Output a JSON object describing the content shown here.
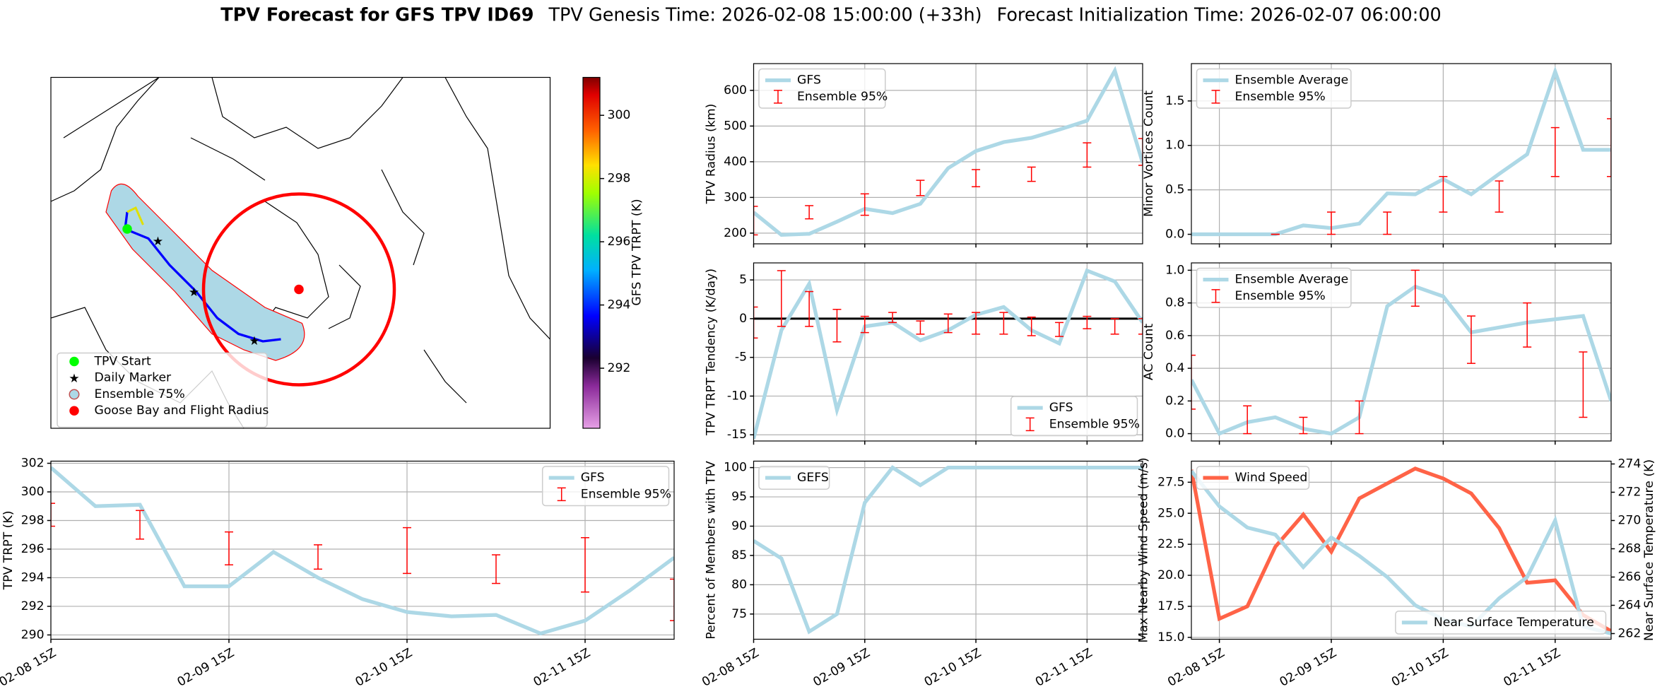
{
  "title": {
    "bold": "TPV Forecast for GFS TPV ID69",
    "genesis": "TPV Genesis Time: 2026-02-08 15:00:00 (+33h)",
    "init": "Forecast Initialization Time: 2026-02-07 06:00:00"
  },
  "chart_data": [
    {
      "type": "map",
      "legend": [
        "TPV Start",
        "Daily Marker",
        "Ensemble 75%",
        "Goose Bay and Flight Radius"
      ],
      "legend_colors": [
        "#00ff00",
        "#ff00ff",
        "#add8e6",
        "#ff0000"
      ],
      "colorbar": {
        "label": "GFS TPV TRPT (K)",
        "clim": [
          290.1,
          301.2
        ],
        "ticks": [
          292,
          294,
          296,
          298,
          300
        ]
      }
    },
    {
      "type": "line",
      "ylabel": "TPV TRPT (K)",
      "xlim": [
        0,
        84
      ],
      "xticks": [
        {
          "value": 0,
          "label": "02-08 15Z"
        },
        {
          "value": 24,
          "label": "02-09 15Z"
        },
        {
          "value": 48,
          "label": "02-10 15Z"
        },
        {
          "value": 72,
          "label": "02-11 15Z"
        }
      ],
      "xticklabels": true,
      "ylim": [
        289.7,
        302.15
      ],
      "yticks": [
        290,
        292,
        294,
        296,
        298,
        300,
        302
      ],
      "grid": true,
      "legend": "upper right",
      "x": [
        0,
        6,
        12,
        18,
        24,
        30,
        36,
        42,
        48,
        54,
        60,
        66,
        72,
        78,
        84
      ],
      "series": [
        {
          "name": "GFS",
          "color": "#add8e6",
          "values": [
            301.7,
            299.0,
            299.1,
            293.4,
            293.4,
            295.8,
            294.0,
            292.5,
            291.6,
            291.3,
            291.4,
            290.1,
            291.0,
            293.1,
            295.4
          ]
        }
      ],
      "errorbars": {
        "name": "Ensemble 95%",
        "color": "#ff0000",
        "x": [
          0,
          12,
          24,
          36,
          48,
          60,
          72,
          84
        ],
        "low": [
          297.6,
          296.7,
          294.9,
          294.6,
          294.3,
          293.6,
          293.0,
          291.0
        ],
        "high": [
          299.2,
          298.7,
          297.2,
          296.3,
          297.5,
          295.6,
          296.8,
          293.9
        ]
      }
    },
    {
      "type": "line",
      "ylabel": "TPV Radius (km)",
      "xlim": [
        0,
        84
      ],
      "xticks": [
        0,
        24,
        48,
        72
      ],
      "xticklabels": false,
      "ylim": [
        170,
        675
      ],
      "yticks": [
        200,
        300,
        400,
        500,
        600
      ],
      "grid": true,
      "legend": "upper left",
      "x": [
        0,
        6,
        12,
        18,
        24,
        30,
        36,
        42,
        48,
        54,
        60,
        66,
        72,
        78,
        84
      ],
      "series": [
        {
          "name": "GFS",
          "color": "#add8e6",
          "values": [
            258,
            195,
            198,
            232,
            268,
            256,
            282,
            382,
            430,
            455,
            467,
            490,
            515,
            655,
            397
          ]
        }
      ],
      "errorbars": {
        "name": "Ensemble 95%",
        "color": "#ff0000",
        "x": [
          0,
          12,
          24,
          36,
          48,
          60,
          72,
          84
        ],
        "low": [
          195,
          240,
          250,
          305,
          330,
          345,
          385,
          390
        ],
        "high": [
          275,
          277,
          310,
          348,
          378,
          385,
          453,
          465
        ]
      }
    },
    {
      "type": "line",
      "ylabel": "TPV TRPT Tendency (K/day)",
      "xlim": [
        0,
        84
      ],
      "xticks": [
        0,
        24,
        48,
        72
      ],
      "xticklabels": false,
      "ylim": [
        -15.8,
        7.2
      ],
      "yticks": [
        -15,
        -10,
        -5,
        0,
        5
      ],
      "grid": true,
      "legend": "lower right",
      "hline": 0,
      "x": [
        0,
        6,
        12,
        18,
        24,
        30,
        36,
        42,
        48,
        54,
        60,
        66,
        72,
        78,
        84
      ],
      "series": [
        {
          "name": "GFS",
          "color": "#add8e6",
          "values": [
            -15.5,
            -1.5,
            4.5,
            -11.8,
            -1.0,
            -0.5,
            -2.8,
            -1.5,
            0.5,
            1.5,
            -1.5,
            -3.2,
            6.2,
            4.8,
            -0.5
          ]
        }
      ],
      "errorbars": {
        "name": "Ensemble 95%",
        "color": "#ff0000",
        "x": [
          0,
          6,
          12,
          18,
          24,
          30,
          36,
          42,
          48,
          54,
          60,
          66,
          72,
          78,
          84
        ],
        "low": [
          -2.5,
          -1.0,
          -1.0,
          -3.0,
          -1.8,
          -0.5,
          -2.0,
          -1.8,
          -2.0,
          -2.0,
          -2.2,
          -2.3,
          -1.3,
          -2.0,
          -2.0
        ],
        "high": [
          1.5,
          6.2,
          3.5,
          1.2,
          0.3,
          0.8,
          -0.3,
          0.6,
          0.8,
          0.8,
          0.2,
          -0.5,
          0.3,
          0,
          0
        ]
      }
    },
    {
      "type": "line",
      "ylabel": "Percent of Members with TPV",
      "xlim": [
        0,
        84
      ],
      "xticks": [
        {
          "value": 0,
          "label": "02-08 15Z"
        },
        {
          "value": 24,
          "label": "02-09 15Z"
        },
        {
          "value": 48,
          "label": "02-10 15Z"
        },
        {
          "value": 72,
          "label": "02-11 15Z"
        }
      ],
      "xticklabels": true,
      "ylim": [
        70.7,
        101.1
      ],
      "yticks": [
        75,
        80,
        85,
        90,
        95,
        100
      ],
      "grid": true,
      "legend": "upper left",
      "x": [
        0,
        6,
        12,
        18,
        24,
        30,
        36,
        42,
        48,
        54,
        60,
        66,
        72,
        78,
        84
      ],
      "series": [
        {
          "name": "GEFS",
          "color": "#add8e6",
          "values": [
            87.5,
            84.5,
            72,
            75,
            94,
            100,
            97,
            100,
            100,
            100,
            100,
            100,
            100,
            100,
            100
          ]
        }
      ]
    },
    {
      "type": "line",
      "ylabel": "Minor Vortices Count",
      "xlim": [
        -6,
        84
      ],
      "xticks": [
        0,
        24,
        48,
        72
      ],
      "xticklabels": false,
      "ylim": [
        -0.107,
        1.92
      ],
      "yticks": [
        {
          "value": 0,
          "label": "0.0"
        },
        {
          "value": 0.5,
          "label": "0.5"
        },
        {
          "value": 1,
          "label": "1.0"
        },
        {
          "value": 1.5,
          "label": "1.5"
        }
      ],
      "grid": true,
      "legend": "upper left",
      "x": [
        -6,
        0,
        6,
        12,
        18,
        24,
        30,
        36,
        42,
        48,
        54,
        60,
        66,
        72,
        78,
        84
      ],
      "series": [
        {
          "name": "Ensemble Average",
          "color": "#add8e6",
          "values": [
            0,
            0,
            0,
            0,
            0.1,
            0.07,
            0.12,
            0.46,
            0.45,
            0.62,
            0.45,
            0.68,
            0.9,
            1.83,
            0.95,
            0.95
          ]
        }
      ],
      "errorbars": {
        "name": "Ensemble 95%",
        "color": "#ff0000",
        "x": [
          12,
          24,
          36,
          48,
          60,
          72,
          84
        ],
        "low": [
          0,
          0,
          0,
          0.25,
          0.25,
          0.65,
          0.65
        ],
        "high": [
          0,
          0.25,
          0.25,
          0.65,
          0.6,
          1.2,
          1.3
        ]
      }
    },
    {
      "type": "line",
      "ylabel": "AC Count",
      "xlim": [
        -6,
        84
      ],
      "xticks": [
        0,
        24,
        48,
        72
      ],
      "xticklabels": false,
      "ylim": [
        -0.045,
        1.045
      ],
      "yticks": [
        {
          "value": 0,
          "label": "0.0"
        },
        {
          "value": 0.2,
          "label": "0.2"
        },
        {
          "value": 0.4,
          "label": "0.4"
        },
        {
          "value": 0.6,
          "label": "0.6"
        },
        {
          "value": 0.8,
          "label": "0.8"
        },
        {
          "value": 1,
          "label": "1.0"
        }
      ],
      "grid": true,
      "legend": "upper left",
      "x": [
        -6,
        0,
        6,
        12,
        18,
        24,
        30,
        36,
        42,
        48,
        54,
        60,
        66,
        72,
        78,
        84
      ],
      "series": [
        {
          "name": "Ensemble Average",
          "color": "#add8e6",
          "values": [
            0.33,
            0.0,
            0.07,
            0.1,
            0.03,
            0.0,
            0.1,
            0.78,
            0.9,
            0.84,
            0.62,
            0.65,
            0.68,
            0.7,
            0.72,
            0.2
          ]
        }
      ],
      "errorbars": {
        "name": "Ensemble 95%",
        "color": "#ff0000",
        "x": [
          -6,
          6,
          18,
          30,
          42,
          54,
          66,
          78
        ],
        "low": [
          0.15,
          0,
          0,
          0,
          0.78,
          0.43,
          0.53,
          0.1
        ],
        "high": [
          0.48,
          0.17,
          0.1,
          0.2,
          1.0,
          0.72,
          0.8,
          0.5
        ]
      }
    },
    {
      "type": "line",
      "ylabel": "Max Nearby Wind Speed (m/s)",
      "ylabel_color": "#ff6347",
      "y2label": "Near Surface Temperature (K)",
      "y2label_color": "#4169e1",
      "xlim": [
        -6,
        84
      ],
      "xticks": [
        {
          "value": 0,
          "label": "02-08 15Z"
        },
        {
          "value": 24,
          "label": "02-09 15Z"
        },
        {
          "value": 48,
          "label": "02-10 15Z"
        },
        {
          "value": 72,
          "label": "02-11 15Z"
        }
      ],
      "xticklabels": true,
      "ylim": [
        14.85,
        29.2
      ],
      "yticks": [
        {
          "value": 15,
          "label": "15.0"
        },
        {
          "value": 17.5,
          "label": "17.5"
        },
        {
          "value": 20,
          "label": "20.0"
        },
        {
          "value": 22.5,
          "label": "22.5"
        },
        {
          "value": 25,
          "label": "25.0"
        },
        {
          "value": 27.5,
          "label": "27.5"
        }
      ],
      "y2lim": [
        261.6,
        274.2
      ],
      "y2ticks": [
        262,
        264,
        266,
        268,
        270,
        272,
        274
      ],
      "grid": true,
      "x": [
        -6,
        0,
        6,
        12,
        18,
        24,
        30,
        36,
        42,
        48,
        54,
        60,
        66,
        72,
        78,
        84
      ],
      "series": [
        {
          "name": "Wind Speed",
          "color": "#ff6347",
          "legend": "upper left",
          "values": [
            28.5,
            16.5,
            17.5,
            22.3,
            24.9,
            21.9,
            26.2,
            27.4,
            28.6,
            27.8,
            26.6,
            23.8,
            19.4,
            19.6,
            16.8,
            15.5
          ]
        },
        {
          "name": "Near Surface Temperature",
          "color": "#add8e6",
          "axis": "y2",
          "legend": "lower right",
          "values": [
            273.5,
            271.0,
            269.5,
            269.0,
            266.7,
            268.8,
            267.5,
            266.0,
            264.0,
            263.0,
            262.5,
            264.5,
            266.0,
            270.0,
            262.5,
            262.0
          ]
        }
      ]
    }
  ]
}
